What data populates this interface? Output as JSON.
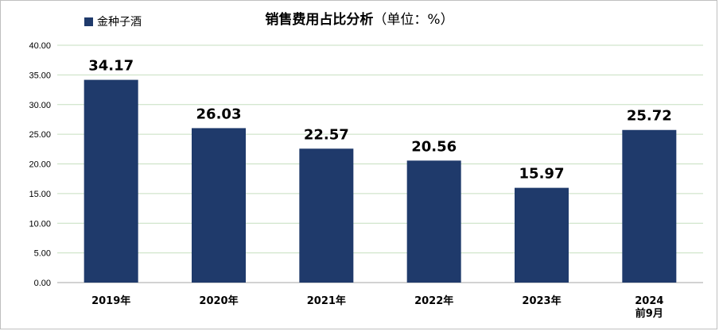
{
  "chart_data": {
    "type": "bar",
    "title": "销售费用占比分析",
    "title_unit": "（单位：%）",
    "series": [
      {
        "name": "金种子酒",
        "color": "#1f3a6b",
        "values": [
          34.17,
          26.03,
          22.57,
          20.56,
          15.97,
          25.72
        ]
      }
    ],
    "categories": [
      "2019年",
      "2020年",
      "2021年",
      "2022年",
      "2023年",
      "2024 前9月"
    ],
    "category_lines": [
      [
        "2019年"
      ],
      [
        "2020年"
      ],
      [
        "2021年"
      ],
      [
        "2022年"
      ],
      [
        "2023年"
      ],
      [
        "2024",
        "前9月"
      ]
    ],
    "data_labels": [
      "34.17",
      "26.03",
      "22.57",
      "20.56",
      "15.97",
      "25.72"
    ],
    "y_ticks": [
      "0.00",
      "5.00",
      "10.00",
      "15.00",
      "20.00",
      "25.00",
      "30.00",
      "35.00",
      "40.00"
    ],
    "ylim": [
      0,
      40
    ],
    "grid": true,
    "gridline_color": "#c6dfbf",
    "legend_position": "top-left"
  }
}
